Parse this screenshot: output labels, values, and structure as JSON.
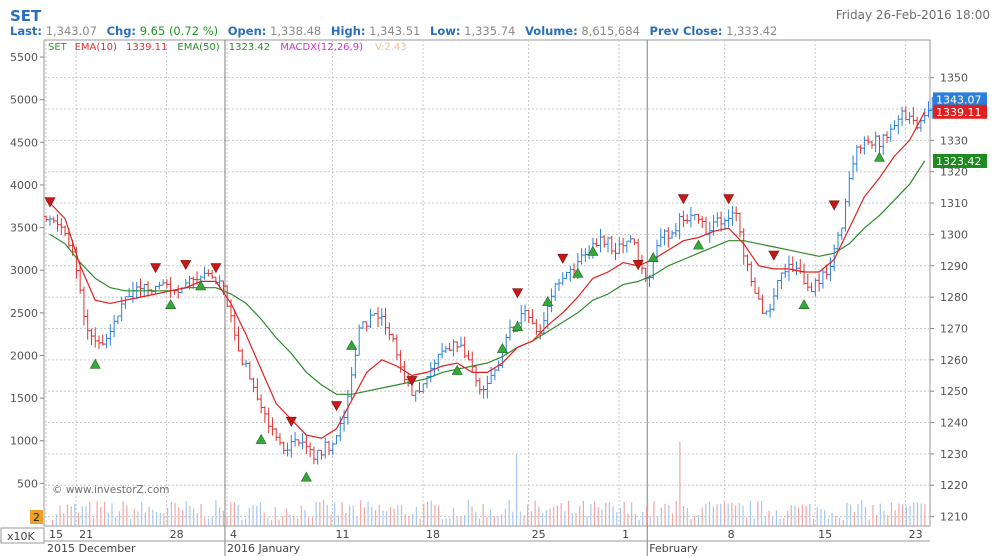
{
  "header": {
    "symbol": "SET",
    "datetime": "Friday 26-Feb-2016 18:00",
    "last_label": "Last:",
    "last": "1,343.07",
    "chg_label": "Chg:",
    "chg": "9.65 (0.72 %)",
    "open_label": "Open:",
    "open": "1,338.48",
    "high_label": "High:",
    "high": "1,343.51",
    "low_label": "Low:",
    "low": "1,335.74",
    "volume_label": "Volume:",
    "volume": "8,615,684",
    "prev_close_label": "Prev Close:",
    "prev_close": "1,333.42"
  },
  "legend": [
    {
      "text": "SET",
      "color": "#2e9a2e"
    },
    {
      "text": "EMA(10)",
      "color": "#e03030"
    },
    {
      "text": "1339.11",
      "color": "#e03030"
    },
    {
      "text": "EMA(50)",
      "color": "#2e8a2e"
    },
    {
      "text": "1323.42",
      "color": "#2e8a2e"
    },
    {
      "text": "MACDX(12,26,9)",
      "color": "#cc33cc"
    },
    {
      "text": "V:2.43",
      "color": "#f0c090"
    }
  ],
  "price_badges": [
    {
      "text": "1343.07",
      "value": 1343.07,
      "color": "#2a7fdc"
    },
    {
      "text": "1339.11",
      "value": 1339.11,
      "color": "#e02020"
    },
    {
      "text": "1323.42",
      "value": 1323.42,
      "color": "#1f8a1f"
    }
  ],
  "watermark": "© www.investorZ.com",
  "volume_badge": "2",
  "unit_label": "x10K",
  "month_labels": [
    {
      "text": "2015 December",
      "index": 0
    },
    {
      "text": "2016 January",
      "index": 12
    },
    {
      "text": "February",
      "index": 40
    }
  ],
  "chart_data": {
    "type": "ohlc",
    "x_tick_labels": [
      {
        "label": "15",
        "index": 0
      },
      {
        "label": "21",
        "index": 2
      },
      {
        "label": "28",
        "index": 8
      },
      {
        "label": "4",
        "index": 12
      },
      {
        "label": "11",
        "index": 19
      },
      {
        "label": "18",
        "index": 25
      },
      {
        "label": "25",
        "index": 32
      },
      {
        "label": "1",
        "index": 38
      },
      {
        "label": "8",
        "index": 45
      },
      {
        "label": "15",
        "index": 51
      },
      {
        "label": "23",
        "index": 57
      }
    ],
    "right_axis": {
      "ticks": [
        1210,
        1220,
        1230,
        1240,
        1250,
        1260,
        1270,
        1280,
        1290,
        1300,
        1310,
        1320,
        1330,
        1340,
        1350
      ],
      "range": [
        1207,
        1362
      ]
    },
    "left_axis": {
      "ticks": [
        500,
        1000,
        1500,
        2000,
        2500,
        3000,
        3500,
        4000,
        4500,
        5000,
        5500
      ],
      "range": [
        0,
        5700
      ]
    },
    "bars_per_day": 4,
    "close": [
      1305,
      1293,
      1269,
      1264,
      1275,
      1283,
      1282,
      1284,
      1283,
      1285,
      1289,
      1284,
      1263,
      1252,
      1240,
      1230,
      1235,
      1228,
      1233,
      1240,
      1270,
      1274,
      1270,
      1253,
      1248,
      1260,
      1265,
      1262,
      1250,
      1257,
      1269,
      1276,
      1269,
      1284,
      1287,
      1293,
      1300,
      1295,
      1300,
      1285,
      1298,
      1303,
      1306,
      1302,
      1305,
      1306,
      1283,
      1274,
      1288,
      1289,
      1283,
      1287,
      1304,
      1329,
      1330,
      1330,
      1338,
      1336,
      1343.07
    ],
    "ema10": [
      1310,
      1305,
      1290,
      1279,
      1278,
      1279,
      1280,
      1281,
      1282,
      1283,
      1285,
      1285,
      1278,
      1268,
      1257,
      1246,
      1241,
      1236,
      1235,
      1238,
      1247,
      1256,
      1260,
      1258,
      1255,
      1256,
      1258,
      1259,
      1256,
      1256,
      1259,
      1264,
      1266,
      1271,
      1275,
      1280,
      1286,
      1288,
      1291,
      1290,
      1292,
      1295,
      1298,
      1299,
      1301,
      1302,
      1297,
      1290,
      1289,
      1289,
      1288,
      1288,
      1292,
      1302,
      1312,
      1318,
      1325,
      1330,
      1339.11
    ],
    "ema50": [
      1300,
      1297,
      1291,
      1286,
      1283,
      1282,
      1282,
      1282,
      1282,
      1283,
      1283,
      1283,
      1281,
      1278,
      1273,
      1267,
      1262,
      1256,
      1252,
      1249,
      1249,
      1250,
      1251,
      1252,
      1253,
      1254,
      1256,
      1257,
      1258,
      1259,
      1261,
      1264,
      1266,
      1269,
      1272,
      1275,
      1279,
      1281,
      1284,
      1285,
      1287,
      1290,
      1292,
      1294,
      1296,
      1298,
      1298,
      1297,
      1296,
      1295,
      1294,
      1293,
      1294,
      1297,
      1302,
      1306,
      1311,
      1316,
      1323.42
    ],
    "macdx": [
      3350,
      3250,
      2700,
      2300,
      2450,
      2650,
      2650,
      2700,
      2700,
      2750,
      2850,
      2700,
      2200,
      1800,
      1450,
      1000,
      800,
      650,
      800,
      1150,
      1700,
      2200,
      2250,
      1600,
      1300,
      1550,
      1800,
      1700,
      1450,
      1550,
      1800,
      2250,
      2300,
      2750,
      2800,
      3000,
      3300,
      3050,
      3100,
      2650,
      2950,
      3300,
      3550,
      3400,
      3350,
      3250,
      2300,
      1900,
      2700,
      2900,
      2700,
      2750,
      3300,
      4000,
      4200,
      4300,
      4400,
      4650,
      4800
    ],
    "buy_signals": [
      3,
      8,
      10,
      14,
      17,
      20,
      27,
      30,
      31,
      33,
      35,
      36,
      40,
      43,
      50,
      55
    ],
    "sell_signals": [
      0,
      7,
      9,
      11,
      16,
      19,
      24,
      31,
      34,
      39,
      42,
      45,
      48,
      52
    ],
    "volume_spikes": [
      {
        "index": 31,
        "multiplier": 3
      },
      {
        "index": 42,
        "multiplier": 3.5
      }
    ]
  }
}
